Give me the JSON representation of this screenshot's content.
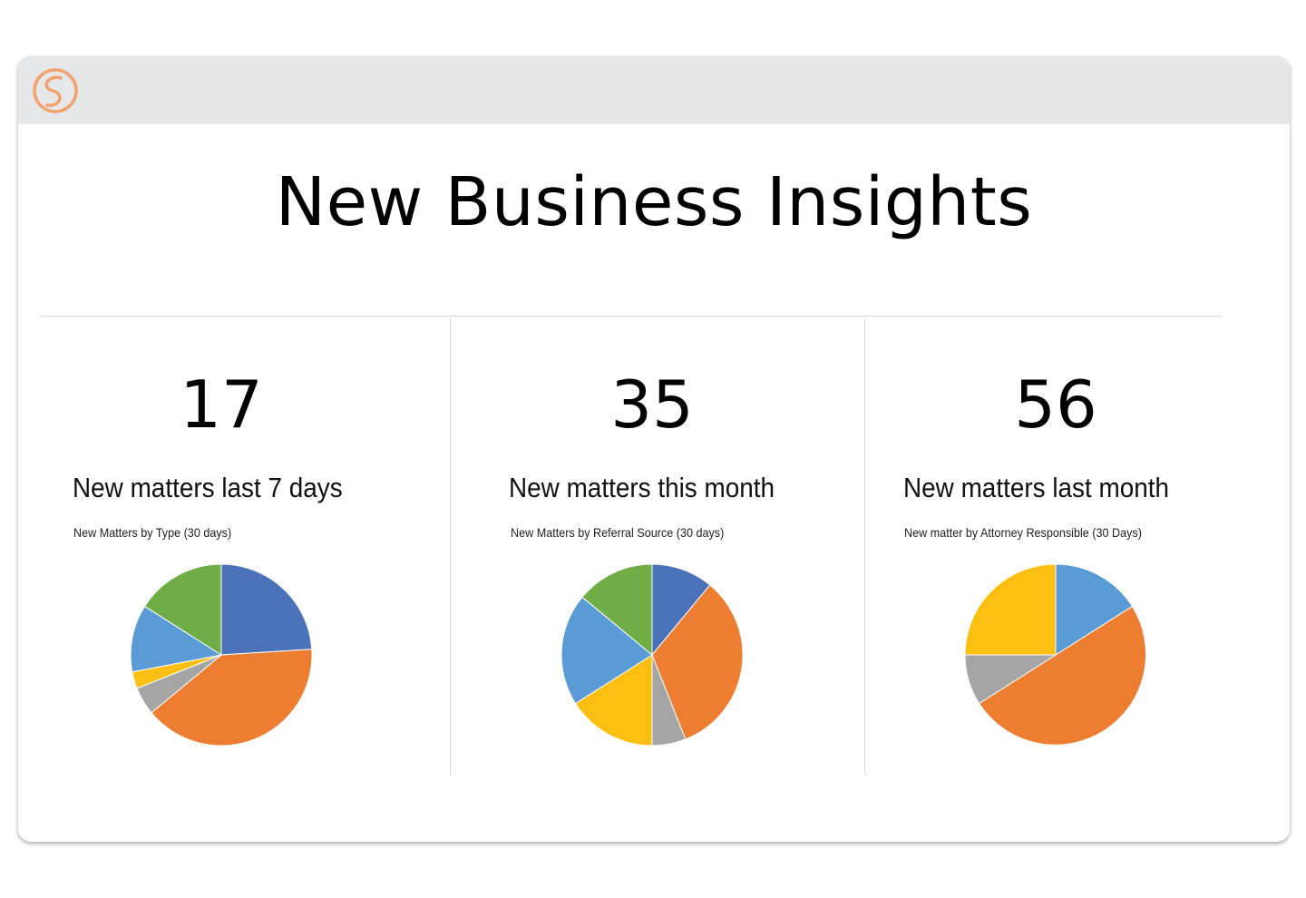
{
  "header": {
    "logo_icon": "brand-logo-icon",
    "logo_color": "#f0a36e"
  },
  "page": {
    "title": "New Business Insights"
  },
  "colors": {
    "blue_dark": "#4a72b8",
    "orange": "#ed7d31",
    "gray": "#a5a5a5",
    "yellow": "#fbbf12",
    "blue_light": "#5b9bd5",
    "green": "#70ad47"
  },
  "panels": [
    {
      "kpi": "17",
      "label": "New matters last 7 days"
    },
    {
      "kpi": "35",
      "label": "New matters this month"
    },
    {
      "kpi": "56",
      "label": "New matters last month"
    }
  ],
  "chart_data": [
    {
      "type": "pie",
      "title": "New Matters by Type (30 days)",
      "legend": "none",
      "slices": [
        {
          "value": 24,
          "color": "#4a72b8"
        },
        {
          "value": 40,
          "color": "#ed7d31"
        },
        {
          "value": 5,
          "color": "#a5a5a5"
        },
        {
          "value": 3,
          "color": "#fbbf12"
        },
        {
          "value": 12,
          "color": "#5b9bd5"
        },
        {
          "value": 16,
          "color": "#70ad47"
        }
      ]
    },
    {
      "type": "pie",
      "title": "New Matters by Referral Source (30 days)",
      "legend": "none",
      "slices": [
        {
          "value": 11,
          "color": "#4a72b8"
        },
        {
          "value": 33,
          "color": "#ed7d31"
        },
        {
          "value": 6,
          "color": "#a5a5a5"
        },
        {
          "value": 16,
          "color": "#fbbf12"
        },
        {
          "value": 20,
          "color": "#5b9bd5"
        },
        {
          "value": 14,
          "color": "#70ad47"
        }
      ]
    },
    {
      "type": "pie",
      "title": "New matter by Attorney Responsible (30 Days)",
      "legend": "none",
      "slices": [
        {
          "value": 16,
          "color": "#5b9bd5"
        },
        {
          "value": 50,
          "color": "#ed7d31"
        },
        {
          "value": 9,
          "color": "#a5a5a5"
        },
        {
          "value": 25,
          "color": "#fbbf12"
        }
      ]
    }
  ]
}
